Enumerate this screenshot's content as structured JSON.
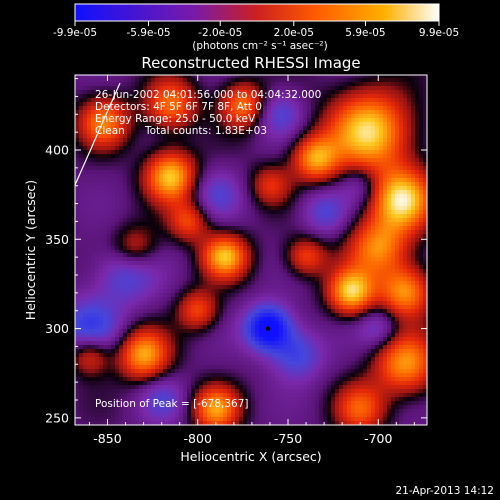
{
  "chart_data": {
    "type": "heatmap",
    "title": "Reconstructed RHESSI Image",
    "xlabel": "Heliocentric X (arcsec)",
    "ylabel": "Heliocentric Y (arcsec)",
    "xlim": [
      -868,
      -673
    ],
    "ylim": [
      246,
      442
    ],
    "x_ticks": [
      -850,
      -800,
      -750,
      -700
    ],
    "x_tick_labels": [
      "-850",
      "-800",
      "-750",
      "-700"
    ],
    "y_ticks": [
      250,
      300,
      350,
      400
    ],
    "y_tick_labels": [
      "250",
      "300",
      "350",
      "400"
    ],
    "colorbar": {
      "min": -9.9e-05,
      "max": 9.9e-05,
      "ticks": [
        -9.9e-05,
        -5.9e-05,
        -2e-05,
        2e-05,
        5.9e-05,
        9.9e-05
      ],
      "tick_labels": [
        "-9.9e-05",
        "-5.9e-05",
        "-2.0e-05",
        "2.0e-05",
        "5.9e-05",
        "9.9e-05"
      ],
      "unit_label": "(photons cm⁻² s⁻¹ asec⁻²)",
      "colors": [
        "#1010ff",
        "#7a1aa8",
        "#cc2020",
        "#ff5a00",
        "#ffb000",
        "#ffffff"
      ]
    },
    "annotations": {
      "time_range": "26-Jun-2002 04:01:56.000 to 04:04:32.000",
      "detectors": "Detectors: 4F 5F 6F 7F 8F, Att 0",
      "energy_range": "Energy Range: 25.0 - 50.0 keV",
      "clean_label": "Clean",
      "total_counts": "Total counts: 1.83E+03",
      "peak_position": "Position of Peak = [-678,367]"
    },
    "peak": {
      "x": -678,
      "y": 367
    },
    "min_marker": {
      "x": -761,
      "y": 300
    },
    "sources": [
      {
        "x": -705,
        "y": 410,
        "a": 1.0,
        "s": 16
      },
      {
        "x": -687,
        "y": 372,
        "a": 1.0,
        "s": 12
      },
      {
        "x": -700,
        "y": 345,
        "a": 0.75,
        "s": 12
      },
      {
        "x": -715,
        "y": 320,
        "a": 0.95,
        "s": 9
      },
      {
        "x": -685,
        "y": 320,
        "a": 0.8,
        "s": 10
      },
      {
        "x": -685,
        "y": 280,
        "a": 0.8,
        "s": 12
      },
      {
        "x": -710,
        "y": 255,
        "a": 0.6,
        "s": 10
      },
      {
        "x": -735,
        "y": 395,
        "a": 0.8,
        "s": 9
      },
      {
        "x": -775,
        "y": 425,
        "a": 0.7,
        "s": 9
      },
      {
        "x": -815,
        "y": 425,
        "a": 0.7,
        "s": 10
      },
      {
        "x": -852,
        "y": 415,
        "a": 0.7,
        "s": 10
      },
      {
        "x": -815,
        "y": 385,
        "a": 0.95,
        "s": 10
      },
      {
        "x": -805,
        "y": 360,
        "a": 0.55,
        "s": 8
      },
      {
        "x": -835,
        "y": 345,
        "a": 0.45,
        "s": 9
      },
      {
        "x": -785,
        "y": 340,
        "a": 0.9,
        "s": 9
      },
      {
        "x": -830,
        "y": 285,
        "a": 0.85,
        "s": 10
      },
      {
        "x": -860,
        "y": 285,
        "a": 0.6,
        "s": 8
      },
      {
        "x": -800,
        "y": 310,
        "a": 0.55,
        "s": 8
      },
      {
        "x": -790,
        "y": 255,
        "a": 0.8,
        "s": 9
      },
      {
        "x": -740,
        "y": 340,
        "a": 0.55,
        "s": 8
      },
      {
        "x": -760,
        "y": 380,
        "a": 0.45,
        "s": 8
      },
      {
        "x": -860,
        "y": 300,
        "a": -0.55,
        "s": 12
      },
      {
        "x": -840,
        "y": 330,
        "a": -0.45,
        "s": 12
      },
      {
        "x": -761,
        "y": 300,
        "a": -1.0,
        "s": 9
      },
      {
        "x": -745,
        "y": 285,
        "a": -0.5,
        "s": 10
      },
      {
        "x": -790,
        "y": 375,
        "a": -0.35,
        "s": 10
      },
      {
        "x": -755,
        "y": 420,
        "a": -0.4,
        "s": 9
      },
      {
        "x": -730,
        "y": 365,
        "a": -0.4,
        "s": 9
      },
      {
        "x": -820,
        "y": 260,
        "a": -0.35,
        "s": 9
      },
      {
        "x": -700,
        "y": 300,
        "a": -0.35,
        "s": 8
      },
      {
        "x": -710,
        "y": 380,
        "a": -0.3,
        "s": 8
      }
    ]
  },
  "footer": {
    "timestamp": "21-Apr-2013 14:12"
  }
}
